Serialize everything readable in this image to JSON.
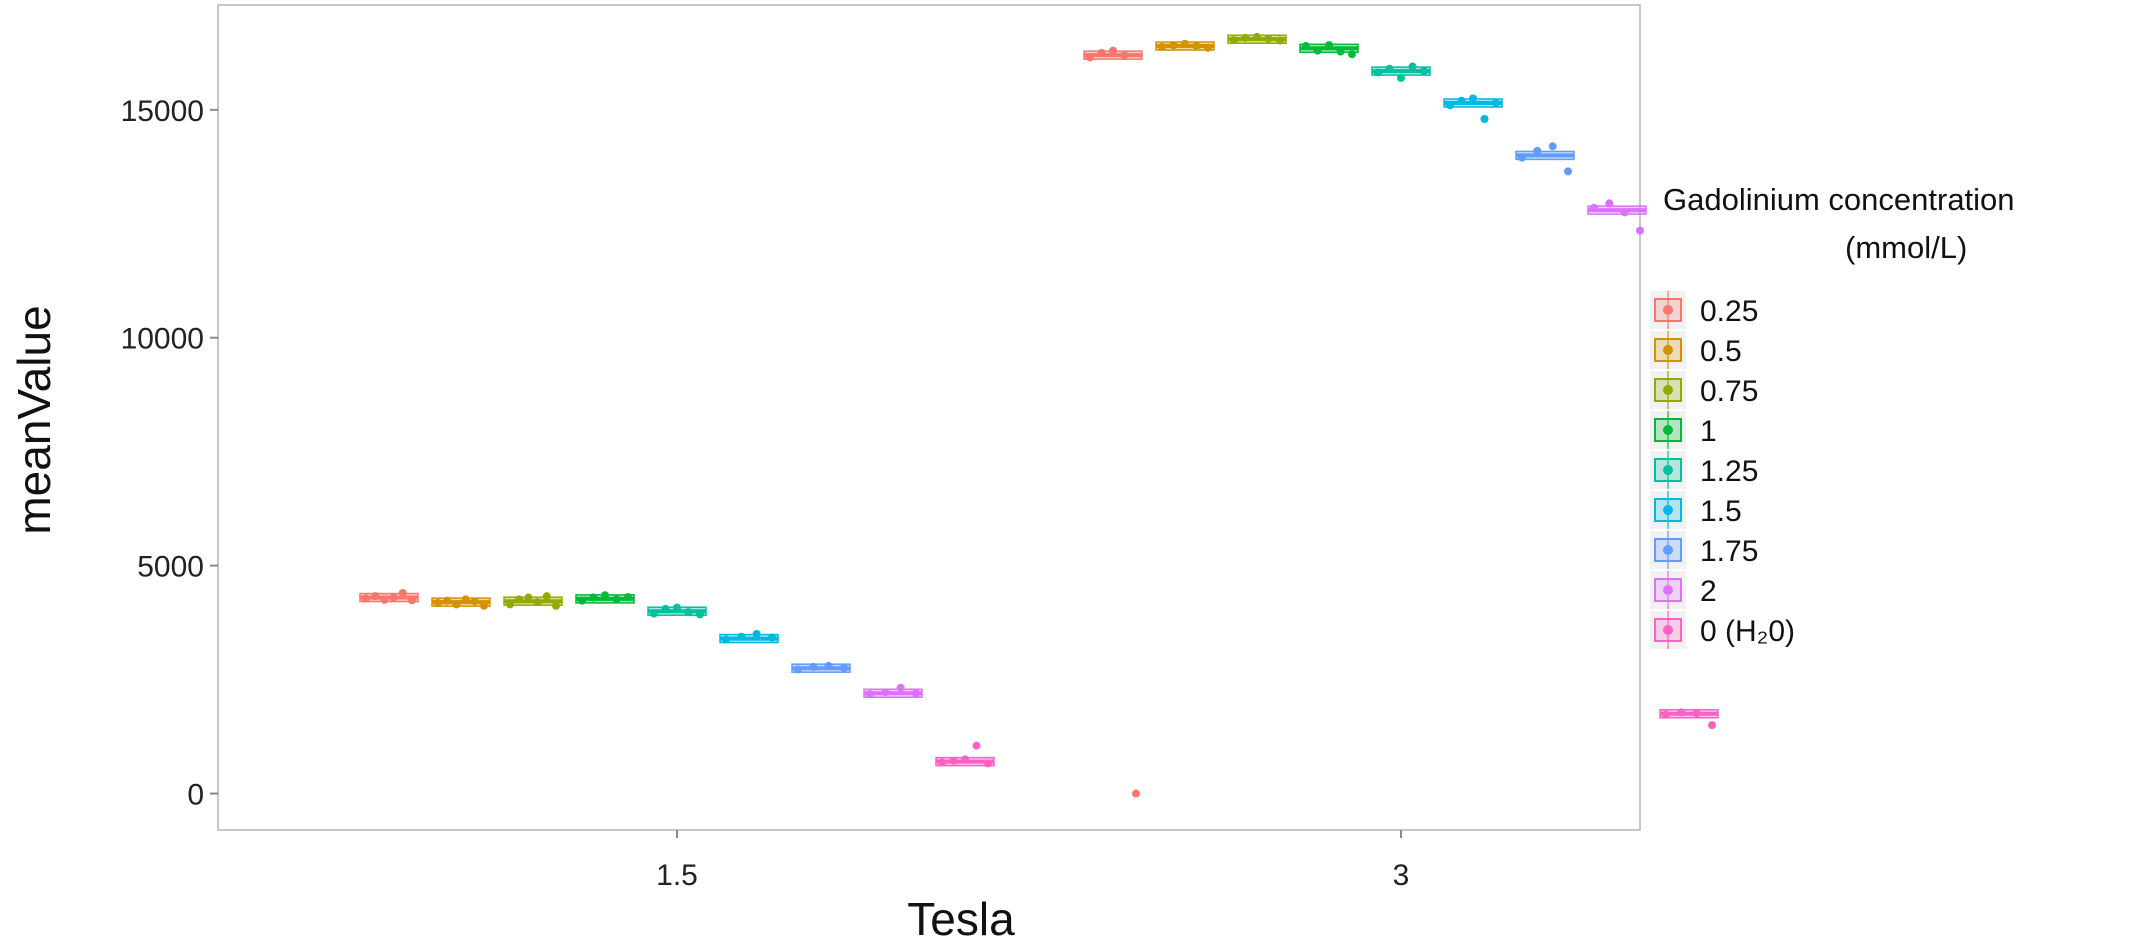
{
  "chart_data": {
    "type": "box",
    "xlabel": "Tesla",
    "ylabel": "meanValue",
    "x_categories": [
      "1.5",
      "3"
    ],
    "y_ticks": [
      0,
      5000,
      10000,
      15000
    ],
    "ylim": [
      -800,
      17300
    ],
    "grid": false,
    "legend": {
      "title_line1": "Gadolinium concentration",
      "title_line2": "(mmol/L)",
      "placement": "right"
    },
    "series": [
      {
        "name": "0.25",
        "color": "#F8766D",
        "values": {
          "1.5": {
            "median": 4300,
            "points": [
              4280,
              4330,
              4250,
              4300,
              4400,
              4240
            ]
          },
          "3": {
            "median": 16200,
            "points": [
              16150,
              16250,
              16300,
              16200,
              0
            ]
          }
        }
      },
      {
        "name": "0.5",
        "color": "#D39200",
        "values": {
          "1.5": {
            "median": 4200,
            "points": [
              4180,
              4230,
              4150,
              4260,
              4220,
              4120
            ]
          },
          "3": {
            "median": 16400,
            "points": [
              16380,
              16420,
              16450,
              16400,
              16360
            ]
          }
        }
      },
      {
        "name": "0.75",
        "color": "#93AA00",
        "values": {
          "1.5": {
            "median": 4220,
            "points": [
              4150,
              4260,
              4300,
              4200,
              4330,
              4120
            ]
          },
          "3": {
            "median": 16550,
            "points": [
              16530,
              16580,
              16600,
              16560,
              16520
            ]
          }
        }
      },
      {
        "name": "1",
        "color": "#00BA38",
        "values": {
          "1.5": {
            "median": 4270,
            "points": [
              4230,
              4300,
              4350,
              4260,
              4310
            ]
          },
          "3": {
            "median": 16350,
            "points": [
              16400,
              16300,
              16420,
              16280,
              16220
            ]
          }
        }
      },
      {
        "name": "1.25",
        "color": "#00C19F",
        "values": {
          "1.5": {
            "median": 4000,
            "points": [
              3950,
              4050,
              4080,
              3980,
              3930
            ]
          },
          "3": {
            "median": 15850,
            "points": [
              15820,
              15900,
              15700,
              15950,
              15850
            ]
          }
        }
      },
      {
        "name": "1.5",
        "color": "#00B9E3",
        "values": {
          "1.5": {
            "median": 3400,
            "points": [
              3380,
              3440,
              3500,
              3420
            ]
          },
          "3": {
            "median": 15150,
            "points": [
              15100,
              15200,
              15250,
              14800,
              15150
            ]
          }
        }
      },
      {
        "name": "1.75",
        "color": "#619CFF",
        "values": {
          "1.5": {
            "median": 2750,
            "points": [
              2720,
              2780,
              2800,
              2760
            ]
          },
          "3": {
            "median": 14000,
            "points": [
              13950,
              14100,
              14200,
              13650
            ]
          }
        }
      },
      {
        "name": "2",
        "color": "#DB72FB",
        "values": {
          "1.5": {
            "median": 2200,
            "points": [
              2180,
              2220,
              2320,
              2200
            ]
          },
          "3": {
            "median": 12800,
            "points": [
              12850,
              12950,
              12750,
              12350
            ]
          }
        }
      },
      {
        "name": "0 (H₂0)",
        "color": "#FF61C3",
        "values": {
          "1.5": {
            "median": 700,
            "points": [
              680,
              720,
              750,
              1050,
              660
            ]
          },
          "3": {
            "median": 1750,
            "points": [
              1730,
              1780,
              1760,
              1500
            ]
          }
        }
      }
    ]
  }
}
